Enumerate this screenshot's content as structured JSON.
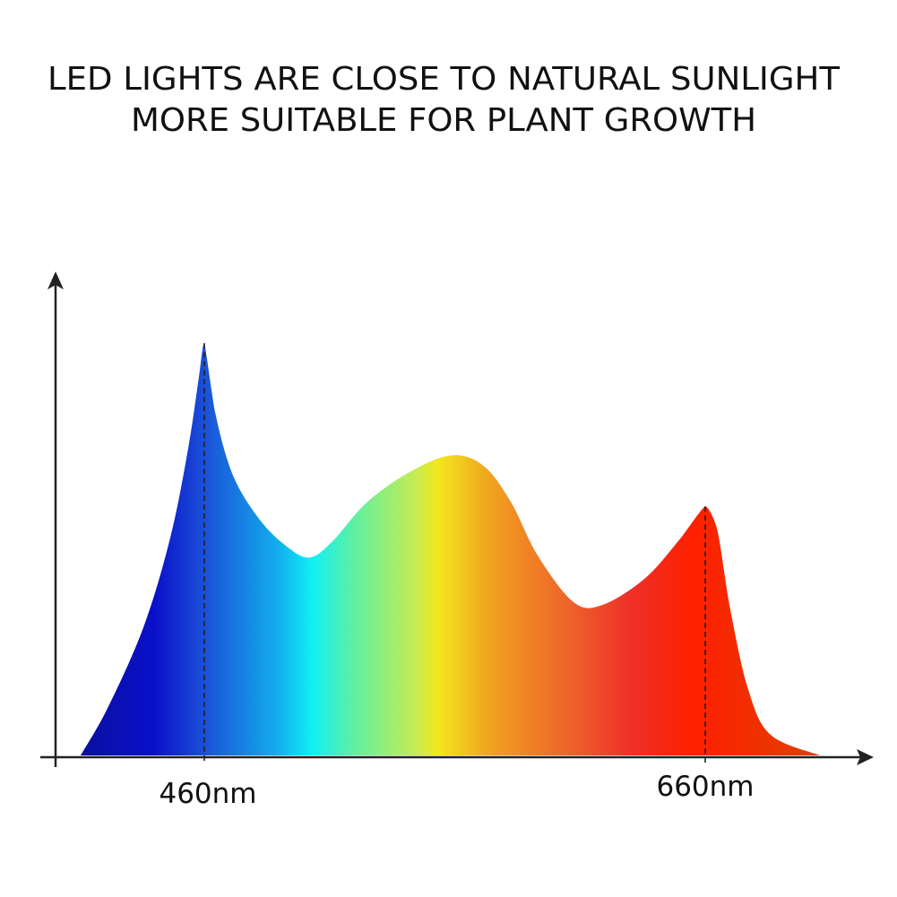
{
  "chart_data": {
    "type": "area",
    "title": [
      "LED LIGHTS ARE CLOSE TO NATURAL SUNLIGHT",
      "MORE SUITABLE FOR PLANT GROWTH"
    ],
    "xlabel": "",
    "ylabel": "",
    "x_unit": "nm",
    "xlim": [
      372,
      772
    ],
    "ylim": [
      0,
      118
    ],
    "grid": false,
    "legend": "none",
    "tick_labels": [
      {
        "x": 460,
        "label": "460nm"
      },
      {
        "x": 660,
        "label": "660nm"
      }
    ],
    "x": [
      410.6,
      421.4,
      435.7,
      446.4,
      453.6,
      457.9,
      460,
      464.3,
      471.4,
      482.1,
      492.9,
      501.9,
      510.8,
      525.1,
      543,
      559.1,
      571.6,
      582.4,
      593.1,
      607.4,
      618.9,
      636,
      650.3,
      660,
      664.7,
      670,
      677.2,
      686.1,
      705.8
    ],
    "values": [
      0,
      11.5,
      31.1,
      52.8,
      74.6,
      92,
      100,
      83.3,
      68,
      57.2,
      50.7,
      48,
      51.7,
      61.5,
      69.1,
      72.8,
      70.2,
      61.5,
      48.5,
      37.2,
      36.5,
      43,
      52.8,
      60.4,
      55,
      35.4,
      15.9,
      5,
      0
    ],
    "fill_gradient": [
      {
        "x": 410,
        "color": "#0a0fa0"
      },
      {
        "x": 440,
        "color": "#0a10c8"
      },
      {
        "x": 460,
        "color": "#1a50d8"
      },
      {
        "x": 490,
        "color": "#12b0ee"
      },
      {
        "x": 503,
        "color": "#10f0f4"
      },
      {
        "x": 520,
        "color": "#60f0a0"
      },
      {
        "x": 545,
        "color": "#c8ec50"
      },
      {
        "x": 553,
        "color": "#f2e81c"
      },
      {
        "x": 575,
        "color": "#f0a020"
      },
      {
        "x": 610,
        "color": "#ee5a2a"
      },
      {
        "x": 630,
        "color": "#ee3028"
      },
      {
        "x": 655,
        "color": "#fe2000"
      },
      {
        "x": 706,
        "color": "#e04000"
      }
    ],
    "axis_color": "#222222"
  }
}
